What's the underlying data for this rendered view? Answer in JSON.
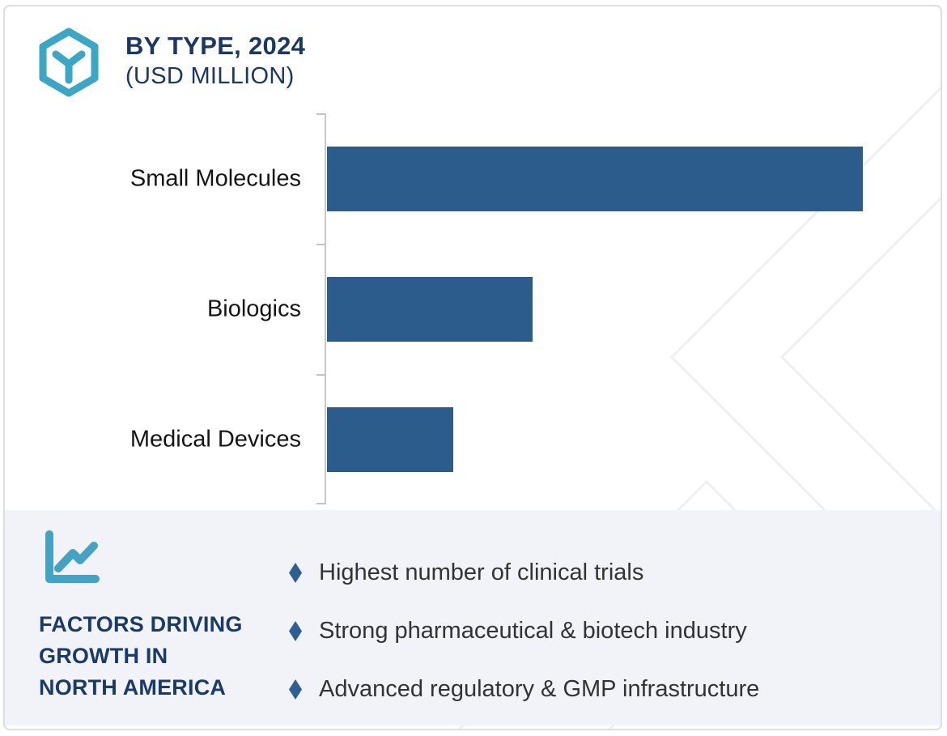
{
  "header": {
    "title_line1": "BY TYPE, 2024",
    "title_line2": "(USD MILLION)",
    "logo_icon": "hexagon-cube-icon",
    "title_color": "#1B3765",
    "accent_teal": "#3BA6C6"
  },
  "chart_data": {
    "type": "bar",
    "orientation": "horizontal",
    "title": "BY TYPE, 2024 (USD MILLION)",
    "categories": [
      "Small Molecules",
      "Biologics",
      "Medical Devices"
    ],
    "values_relative_pct": [
      100,
      38.4,
      23.6
    ],
    "value_axis_labels_shown": false,
    "data_labels_shown": false,
    "grid": false,
    "legend": false,
    "bar_color": "#2C5C8C",
    "axis_color": "#C6C9CD"
  },
  "factors_panel": {
    "icon": "line-chart-icon",
    "background": "#F1F3F8",
    "heading_color": "#1A3A69",
    "heading_lines": [
      "FACTORS DRIVING",
      "GROWTH IN",
      "NORTH AMERICA"
    ],
    "bullet_icon": "diamond-bullet-icon",
    "bullet_color": "#2D5F94",
    "bullets": [
      "Highest number of clinical trials",
      "Strong pharmaceutical & biotech industry",
      "Advanced regulatory & GMP infrastructure"
    ]
  },
  "watermark": {
    "icon": "chevron-watermark",
    "color": "#EFEFEF"
  }
}
